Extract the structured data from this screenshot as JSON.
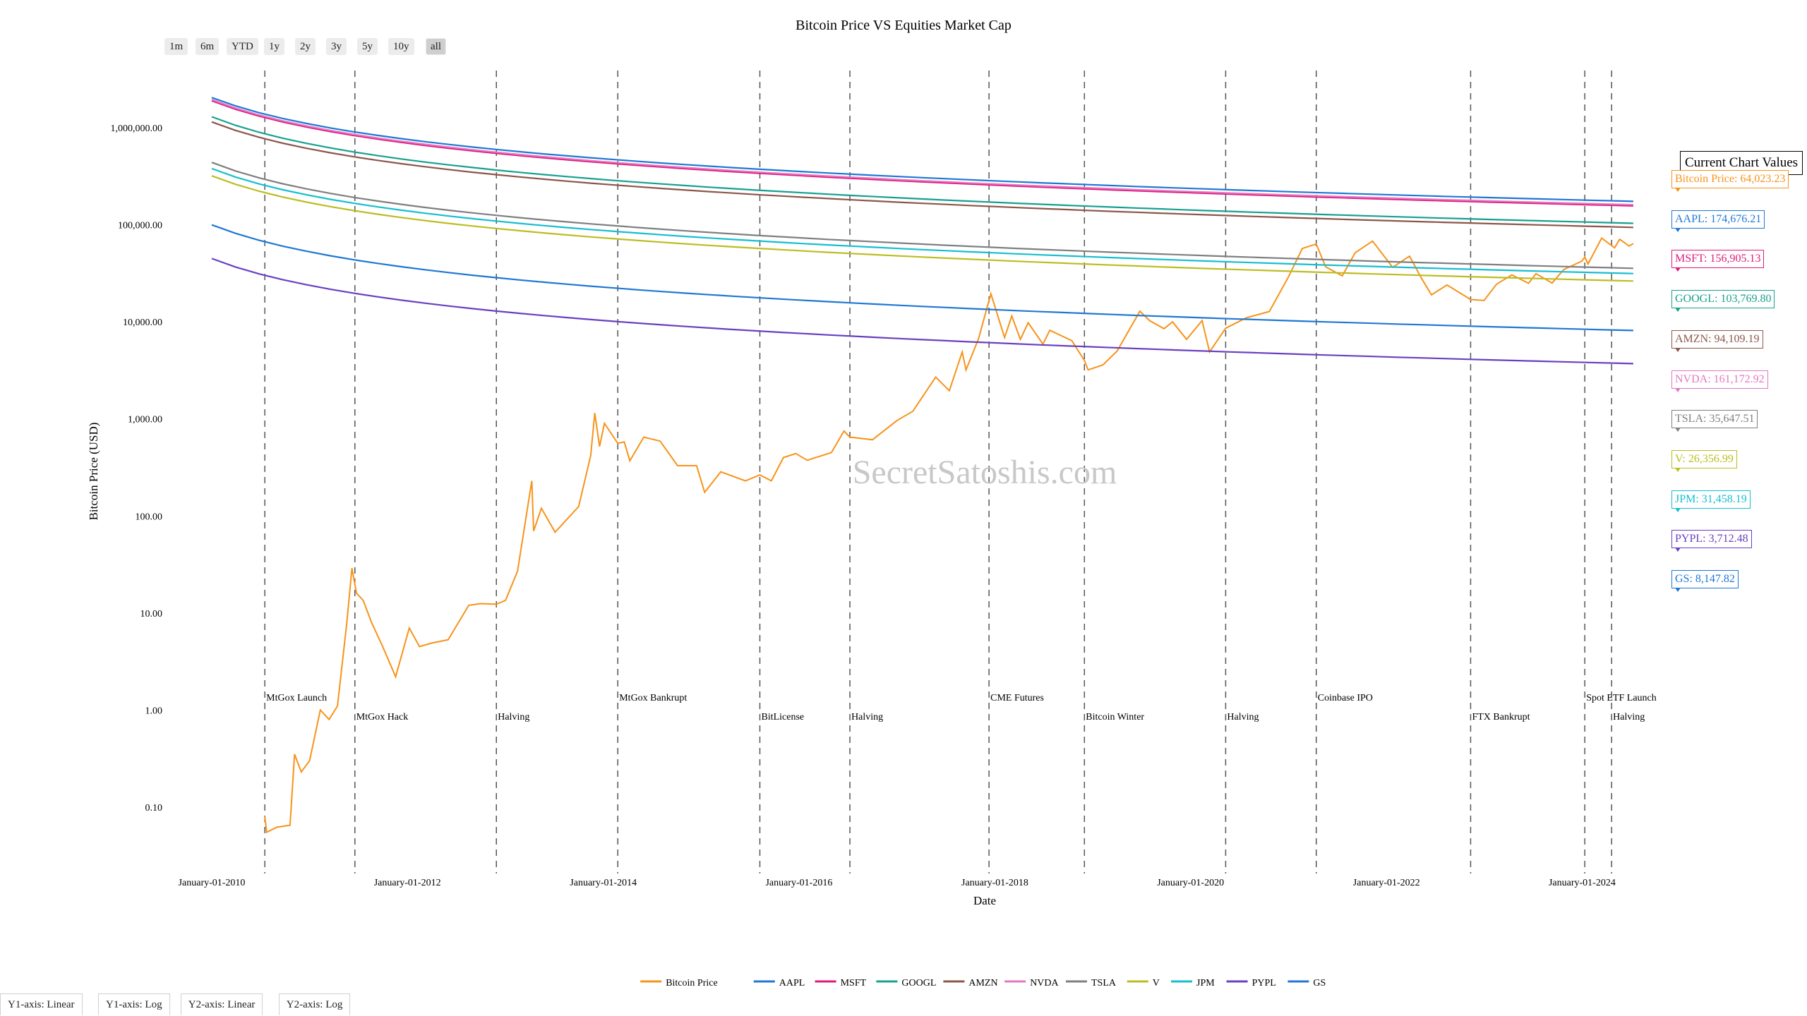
{
  "range_buttons": [
    "1m",
    "6m",
    "YTD",
    "1y",
    "2y",
    "3y",
    "5y",
    "10y",
    "all"
  ],
  "active_range": "all",
  "axis_buttons": [
    "Y1-axis: Linear",
    "Y1-axis: Log",
    "Y2-axis: Linear",
    "Y2-axis: Log"
  ],
  "watermark": "SecretSatoshis.com",
  "value_panel": {
    "title": "Current Chart Values",
    "items": [
      {
        "label": "Bitcoin Price: 64,023.23",
        "color": "#f7931a"
      },
      {
        "label": "AAPL: 174,676.21",
        "color": "#1f77d4"
      },
      {
        "label": "MSFT: 156,905.13",
        "color": "#e0197a"
      },
      {
        "label": "GOOGL: 103,769.80",
        "color": "#17a08f"
      },
      {
        "label": "AMZN: 94,109.19",
        "color": "#8c564b"
      },
      {
        "label": "NVDA: 161,172.92",
        "color": "#e377c2"
      },
      {
        "label": "TSLA: 35,647.51",
        "color": "#7f7f7f"
      },
      {
        "label": "V: 26,356.99",
        "color": "#bcbd22"
      },
      {
        "label": "JPM: 31,458.19",
        "color": "#17becf"
      },
      {
        "label": "PYPL: 3,712.48",
        "color": "#6a3fc1"
      },
      {
        "label": "GS: 8,147.82",
        "color": "#1f77d4"
      }
    ]
  },
  "chart_data": {
    "type": "line",
    "title": "Bitcoin Price VS Equities Market Cap",
    "xlabel": "Date",
    "ylabel": "Bitcoin Price (USD)",
    "y_scale": "log",
    "ylim": [
      0.02,
      5000000
    ],
    "xlim": [
      "2010-01-01",
      "2024-12-31"
    ],
    "x_tick_labels": [
      "January-01-2010",
      "January-01-2012",
      "January-01-2014",
      "January-01-2016",
      "January-01-2018",
      "January-01-2020",
      "January-01-2022",
      "January-01-2024"
    ],
    "x_tick_dates": [
      "2010-01-01",
      "2012-01-01",
      "2014-01-01",
      "2016-01-01",
      "2018-01-01",
      "2020-01-01",
      "2022-01-01",
      "2024-01-01"
    ],
    "y_tick_labels": [
      "0.10",
      "1.00",
      "10.00",
      "100.00",
      "1,000.00",
      "10,000.00",
      "100,000.00",
      "1,000,000.00"
    ],
    "y_tick_values": [
      0.1,
      1,
      10,
      100,
      1000,
      10000,
      100000,
      1000000
    ],
    "legend_position": "bottom",
    "grid": false,
    "events": [
      {
        "date": "2010-07-18",
        "label": "MtGox Launch",
        "row": 0
      },
      {
        "date": "2011-06-19",
        "label": "MtGox Hack",
        "row": 1
      },
      {
        "date": "2012-11-28",
        "label": "Halving",
        "row": 1
      },
      {
        "date": "2014-02-24",
        "label": "MtGox Bankrupt",
        "row": 0
      },
      {
        "date": "2015-08-08",
        "label": "BitLicense",
        "row": 1
      },
      {
        "date": "2016-07-09",
        "label": "Halving",
        "row": 1
      },
      {
        "date": "2017-12-10",
        "label": "CME Futures",
        "row": 0
      },
      {
        "date": "2018-12-01",
        "label": "Bitcoin Winter",
        "row": 1
      },
      {
        "date": "2020-05-11",
        "label": "Halving",
        "row": 1
      },
      {
        "date": "2021-04-14",
        "label": "Coinbase IPO",
        "row": 0
      },
      {
        "date": "2022-11-11",
        "label": "FTX Bankrupt",
        "row": 1
      },
      {
        "date": "2024-01-11",
        "label": "Spot ETF Launch",
        "row": 0
      },
      {
        "date": "2024-04-20",
        "label": "Halving",
        "row": 1
      }
    ],
    "series": [
      {
        "name": "Bitcoin Price",
        "color": "#f7931a",
        "points": [
          [
            "2010-07-18",
            0.08
          ],
          [
            "2010-07-25",
            0.055
          ],
          [
            "2010-09-01",
            0.062
          ],
          [
            "2010-10-20",
            0.065
          ],
          [
            "2010-11-06",
            0.35
          ],
          [
            "2010-12-01",
            0.23
          ],
          [
            "2011-01-01",
            0.3
          ],
          [
            "2011-02-10",
            1.0
          ],
          [
            "2011-03-15",
            0.8
          ],
          [
            "2011-04-15",
            1.1
          ],
          [
            "2011-05-20",
            8.0
          ],
          [
            "2011-06-08",
            29.0
          ],
          [
            "2011-06-25",
            16.0
          ],
          [
            "2011-07-20",
            13.5
          ],
          [
            "2011-08-20",
            8.0
          ],
          [
            "2011-10-01",
            4.5
          ],
          [
            "2011-11-18",
            2.2
          ],
          [
            "2012-01-08",
            7.0
          ],
          [
            "2012-02-15",
            4.5
          ],
          [
            "2012-04-01",
            4.9
          ],
          [
            "2012-06-01",
            5.3
          ],
          [
            "2012-08-17",
            12.0
          ],
          [
            "2012-10-01",
            12.5
          ],
          [
            "2012-11-28",
            12.3
          ],
          [
            "2013-01-01",
            13.5
          ],
          [
            "2013-02-15",
            27.0
          ],
          [
            "2013-04-09",
            230.0
          ],
          [
            "2013-04-16",
            70.0
          ],
          [
            "2013-05-15",
            120.0
          ],
          [
            "2013-07-05",
            68.0
          ],
          [
            "2013-10-01",
            125.0
          ],
          [
            "2013-11-15",
            420.0
          ],
          [
            "2013-11-30",
            1150.0
          ],
          [
            "2013-12-18",
            520.0
          ],
          [
            "2014-01-05",
            900.0
          ],
          [
            "2014-02-24",
            560.0
          ],
          [
            "2014-03-20",
            580.0
          ],
          [
            "2014-04-10",
            370.0
          ],
          [
            "2014-06-01",
            650.0
          ],
          [
            "2014-08-01",
            590.0
          ],
          [
            "2014-10-05",
            330.0
          ],
          [
            "2014-12-15",
            330.0
          ],
          [
            "2015-01-14",
            175.0
          ],
          [
            "2015-03-15",
            285.0
          ],
          [
            "2015-06-15",
            230.0
          ],
          [
            "2015-08-08",
            265.0
          ],
          [
            "2015-09-20",
            230.0
          ],
          [
            "2015-11-04",
            400.0
          ],
          [
            "2015-12-20",
            440.0
          ],
          [
            "2016-02-01",
            375.0
          ],
          [
            "2016-05-01",
            450.0
          ],
          [
            "2016-06-17",
            750.0
          ],
          [
            "2016-07-09",
            650.0
          ],
          [
            "2016-10-01",
            610.0
          ],
          [
            "2016-12-31",
            960.0
          ],
          [
            "2017-03-01",
            1200.0
          ],
          [
            "2017-05-25",
            2700.0
          ],
          [
            "2017-07-15",
            1950.0
          ],
          [
            "2017-09-01",
            4900.0
          ],
          [
            "2017-09-15",
            3200.0
          ],
          [
            "2017-11-01",
            6700.0
          ],
          [
            "2017-12-17",
            19500.0
          ],
          [
            "2018-02-06",
            6900.0
          ],
          [
            "2018-03-05",
            11500.0
          ],
          [
            "2018-04-06",
            6600.0
          ],
          [
            "2018-05-05",
            9800.0
          ],
          [
            "2018-06-29",
            5900.0
          ],
          [
            "2018-07-25",
            8200.0
          ],
          [
            "2018-10-15",
            6400.0
          ],
          [
            "2018-12-01",
            4000.0
          ],
          [
            "2018-12-15",
            3200.0
          ],
          [
            "2019-02-08",
            3600.0
          ],
          [
            "2019-04-02",
            5000.0
          ],
          [
            "2019-06-26",
            12900.0
          ],
          [
            "2019-08-01",
            10300.0
          ],
          [
            "2019-09-24",
            8500.0
          ],
          [
            "2019-10-26",
            10000.0
          ],
          [
            "2019-12-17",
            6600.0
          ],
          [
            "2020-02-13",
            10300.0
          ],
          [
            "2020-03-12",
            4900.0
          ],
          [
            "2020-05-11",
            8600.0
          ],
          [
            "2020-07-27",
            11000.0
          ],
          [
            "2020-10-21",
            12800.0
          ],
          [
            "2020-12-31",
            29000.0
          ],
          [
            "2021-02-21",
            57000.0
          ],
          [
            "2021-04-14",
            63500.0
          ],
          [
            "2021-05-19",
            37000.0
          ],
          [
            "2021-07-20",
            29800.0
          ],
          [
            "2021-09-06",
            51500.0
          ],
          [
            "2021-11-10",
            68000.0
          ],
          [
            "2022-01-24",
            36500.0
          ],
          [
            "2022-03-28",
            47500.0
          ],
          [
            "2022-05-12",
            28000.0
          ],
          [
            "2022-06-18",
            19000.0
          ],
          [
            "2022-08-15",
            24000.0
          ],
          [
            "2022-11-11",
            17000.0
          ],
          [
            "2022-12-31",
            16600.0
          ],
          [
            "2023-02-16",
            24500.0
          ],
          [
            "2023-04-14",
            30500.0
          ],
          [
            "2023-06-15",
            25000.0
          ],
          [
            "2023-07-13",
            31400.0
          ],
          [
            "2023-09-11",
            25100.0
          ],
          [
            "2023-10-24",
            34500.0
          ],
          [
            "2023-12-31",
            42300.0
          ],
          [
            "2024-01-11",
            46500.0
          ],
          [
            "2024-01-23",
            39500.0
          ],
          [
            "2024-03-14",
            73000.0
          ],
          [
            "2024-05-01",
            58000.0
          ],
          [
            "2024-05-20",
            71000.0
          ],
          [
            "2024-06-24",
            60500.0
          ],
          [
            "2024-07-10",
            64023.23
          ]
        ]
      },
      {
        "name": "AAPL",
        "color": "#1f77d4",
        "start_value": 2050000,
        "current_value": 174676.21
      },
      {
        "name": "MSFT",
        "color": "#e0197a",
        "start_value": 1900000,
        "current_value": 156905.13
      },
      {
        "name": "GOOGL",
        "color": "#17a08f",
        "start_value": 1300000,
        "current_value": 103769.8
      },
      {
        "name": "AMZN",
        "color": "#8c564b",
        "start_value": 1150000,
        "current_value": 94109.19
      },
      {
        "name": "NVDA",
        "color": "#e377c2",
        "start_value": 1950000,
        "current_value": 161172.92
      },
      {
        "name": "TSLA",
        "color": "#7f7f7f",
        "start_value": 440000,
        "current_value": 35647.51
      },
      {
        "name": "V",
        "color": "#bcbd22",
        "start_value": 320000,
        "current_value": 26356.99
      },
      {
        "name": "JPM",
        "color": "#17becf",
        "start_value": 380000,
        "current_value": 31458.19
      },
      {
        "name": "PYPL",
        "color": "#6a3fc1",
        "start_value": 45000,
        "current_value": 3712.48
      },
      {
        "name": "GS",
        "color": "#1f77d4",
        "start_value": 100000,
        "current_value": 8147.82
      }
    ]
  }
}
